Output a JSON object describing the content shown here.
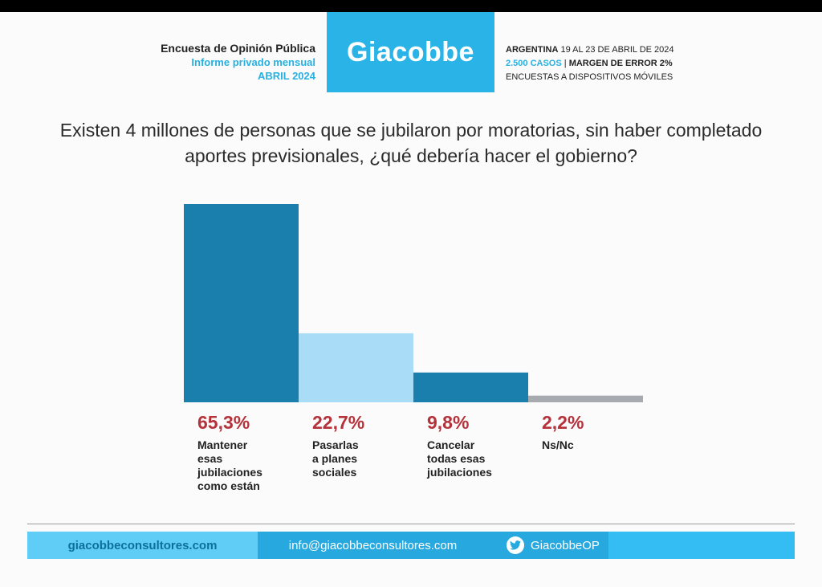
{
  "header": {
    "left": [
      "Encuesta de Opinión Pública",
      "Informe privado mensual",
      "ABRIL 2024"
    ],
    "logo": "Giacobbe",
    "right": {
      "line1_bold": "ARGENTINA",
      "line1_rest": " 19 AL 23 DE ABRIL DE 2024",
      "line2_blue": "2.500 CASOS",
      "line2_sep": " | ",
      "line2_bold": "MARGEN DE ERROR 2%",
      "line3": "ENCUESTAS A DISPOSITIVOS MÓVILES"
    }
  },
  "question": "Existen 4 millones de personas que se jubilaron por moratorias, sin haber completado aportes previsionales, ¿qué debería hacer el gobierno?",
  "chart_data": {
    "type": "bar",
    "categories": [
      "Mantener esas jubilaciones como están",
      "Pasarlas a planes sociales",
      "Cancelar todas esas jubilaciones",
      "Ns/Nc"
    ],
    "values": [
      65.3,
      22.7,
      9.8,
      2.2
    ],
    "value_labels": [
      "65,3%",
      "22,7%",
      "9,8%",
      "2,2%"
    ],
    "label_lines": [
      [
        "Mantener",
        "esas",
        "jubilaciones",
        "como están"
      ],
      [
        "Pasarlas",
        "a planes",
        "sociales"
      ],
      [
        "Cancelar",
        "todas esas",
        "jubilaciones"
      ],
      [
        "Ns/Nc"
      ]
    ],
    "colors": [
      "#1b7fad",
      "#a9dcf6",
      "#1b7fad",
      "#a7abb0"
    ],
    "ylim": [
      0,
      65.3
    ],
    "grid": false,
    "legend": "none"
  },
  "footer": {
    "website": "giacobbeconsultores.com",
    "email": "info@giacobbeconsultores.com",
    "twitter": "GiacobbeOP",
    "twitter_icon": "twitter-bird-icon"
  }
}
